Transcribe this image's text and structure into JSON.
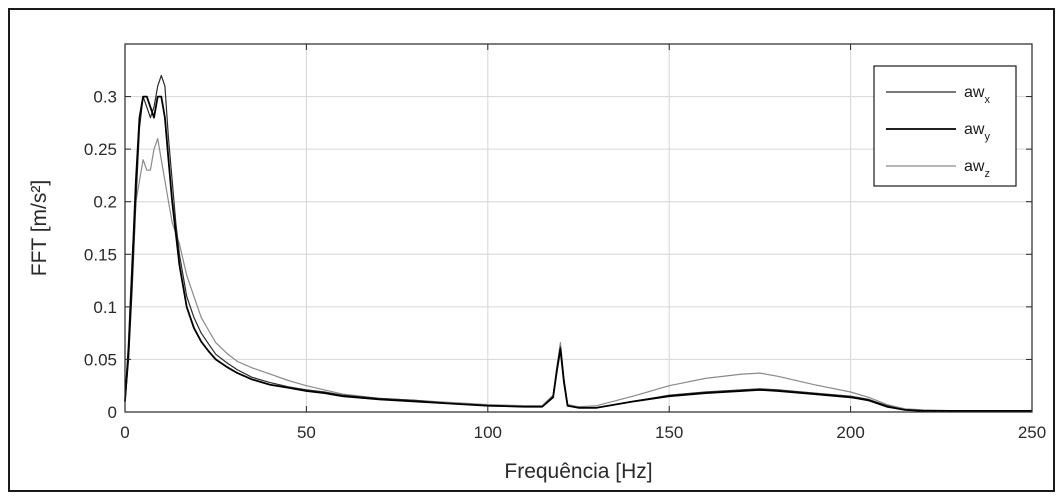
{
  "chart_data": {
    "type": "line",
    "xlabel": "Frequência [Hz]",
    "ylabel": "FFT [m/s²]",
    "xlim": [
      0,
      250
    ],
    "ylim": [
      0,
      0.35
    ],
    "xticks": [
      "0",
      "50",
      "100",
      "150",
      "200",
      "250"
    ],
    "yticks": [
      "0",
      "0.05",
      "0.1",
      "0.15",
      "0.2",
      "0.25",
      "0.3"
    ],
    "grid": true,
    "legend_position": "top-right",
    "series": [
      {
        "name": "aw",
        "subscript": "x",
        "color": "#2b2b2b",
        "x": [
          0,
          1,
          2,
          3,
          4,
          5,
          6,
          7,
          8,
          9,
          10,
          11,
          12,
          13,
          14,
          15,
          17,
          19,
          21,
          23,
          25,
          28,
          31,
          35,
          40,
          45,
          50,
          55,
          60,
          70,
          80,
          90,
          100,
          110,
          115,
          118,
          119,
          120,
          121,
          122,
          125,
          130,
          140,
          150,
          160,
          170,
          175,
          180,
          190,
          200,
          205,
          210,
          215,
          220,
          230,
          240,
          250
        ],
        "y": [
          0.01,
          0.05,
          0.12,
          0.2,
          0.27,
          0.3,
          0.29,
          0.28,
          0.29,
          0.31,
          0.32,
          0.31,
          0.26,
          0.22,
          0.18,
          0.15,
          0.11,
          0.09,
          0.075,
          0.065,
          0.055,
          0.047,
          0.04,
          0.033,
          0.028,
          0.024,
          0.021,
          0.019,
          0.016,
          0.013,
          0.011,
          0.008,
          0.006,
          0.005,
          0.005,
          0.015,
          0.04,
          0.062,
          0.03,
          0.006,
          0.004,
          0.004,
          0.01,
          0.016,
          0.019,
          0.021,
          0.022,
          0.021,
          0.018,
          0.015,
          0.012,
          0.006,
          0.002,
          0.001,
          0.001,
          0.001,
          0.001
        ]
      },
      {
        "name": "aw",
        "subscript": "y",
        "color": "#000000",
        "x": [
          0,
          1,
          2,
          3,
          4,
          5,
          6,
          7,
          8,
          9,
          10,
          11,
          12,
          13,
          14,
          15,
          17,
          19,
          21,
          23,
          25,
          28,
          31,
          35,
          40,
          45,
          50,
          55,
          60,
          70,
          80,
          90,
          100,
          110,
          115,
          118,
          119,
          120,
          121,
          122,
          125,
          130,
          140,
          150,
          160,
          170,
          175,
          180,
          190,
          200,
          205,
          210,
          215,
          220,
          230,
          240,
          250
        ],
        "y": [
          0.01,
          0.06,
          0.14,
          0.22,
          0.28,
          0.3,
          0.3,
          0.29,
          0.28,
          0.3,
          0.3,
          0.28,
          0.24,
          0.2,
          0.17,
          0.14,
          0.1,
          0.08,
          0.067,
          0.058,
          0.05,
          0.043,
          0.037,
          0.031,
          0.026,
          0.023,
          0.02,
          0.018,
          0.015,
          0.012,
          0.01,
          0.008,
          0.006,
          0.005,
          0.005,
          0.014,
          0.038,
          0.06,
          0.028,
          0.006,
          0.004,
          0.004,
          0.01,
          0.015,
          0.018,
          0.02,
          0.021,
          0.02,
          0.017,
          0.014,
          0.011,
          0.005,
          0.002,
          0.001,
          0.001,
          0.001,
          0.001
        ]
      },
      {
        "name": "aw",
        "subscript": "z",
        "color": "#8a8a8a",
        "x": [
          0,
          1,
          2,
          3,
          4,
          5,
          6,
          7,
          8,
          9,
          10,
          11,
          12,
          13,
          14,
          15,
          17,
          19,
          21,
          23,
          25,
          28,
          31,
          35,
          40,
          45,
          50,
          55,
          60,
          70,
          80,
          90,
          100,
          110,
          115,
          118,
          119,
          120,
          121,
          122,
          125,
          130,
          140,
          150,
          160,
          170,
          175,
          180,
          190,
          200,
          205,
          210,
          215,
          220,
          230,
          240,
          250
        ],
        "y": [
          0.01,
          0.07,
          0.15,
          0.2,
          0.22,
          0.24,
          0.23,
          0.23,
          0.25,
          0.26,
          0.24,
          0.22,
          0.2,
          0.18,
          0.17,
          0.16,
          0.13,
          0.11,
          0.09,
          0.078,
          0.066,
          0.056,
          0.048,
          0.042,
          0.036,
          0.03,
          0.025,
          0.021,
          0.017,
          0.013,
          0.011,
          0.009,
          0.007,
          0.006,
          0.006,
          0.016,
          0.042,
          0.066,
          0.032,
          0.007,
          0.005,
          0.006,
          0.015,
          0.025,
          0.032,
          0.036,
          0.037,
          0.034,
          0.026,
          0.019,
          0.014,
          0.007,
          0.003,
          0.002,
          0.001,
          0.001,
          0.001
        ]
      }
    ]
  }
}
